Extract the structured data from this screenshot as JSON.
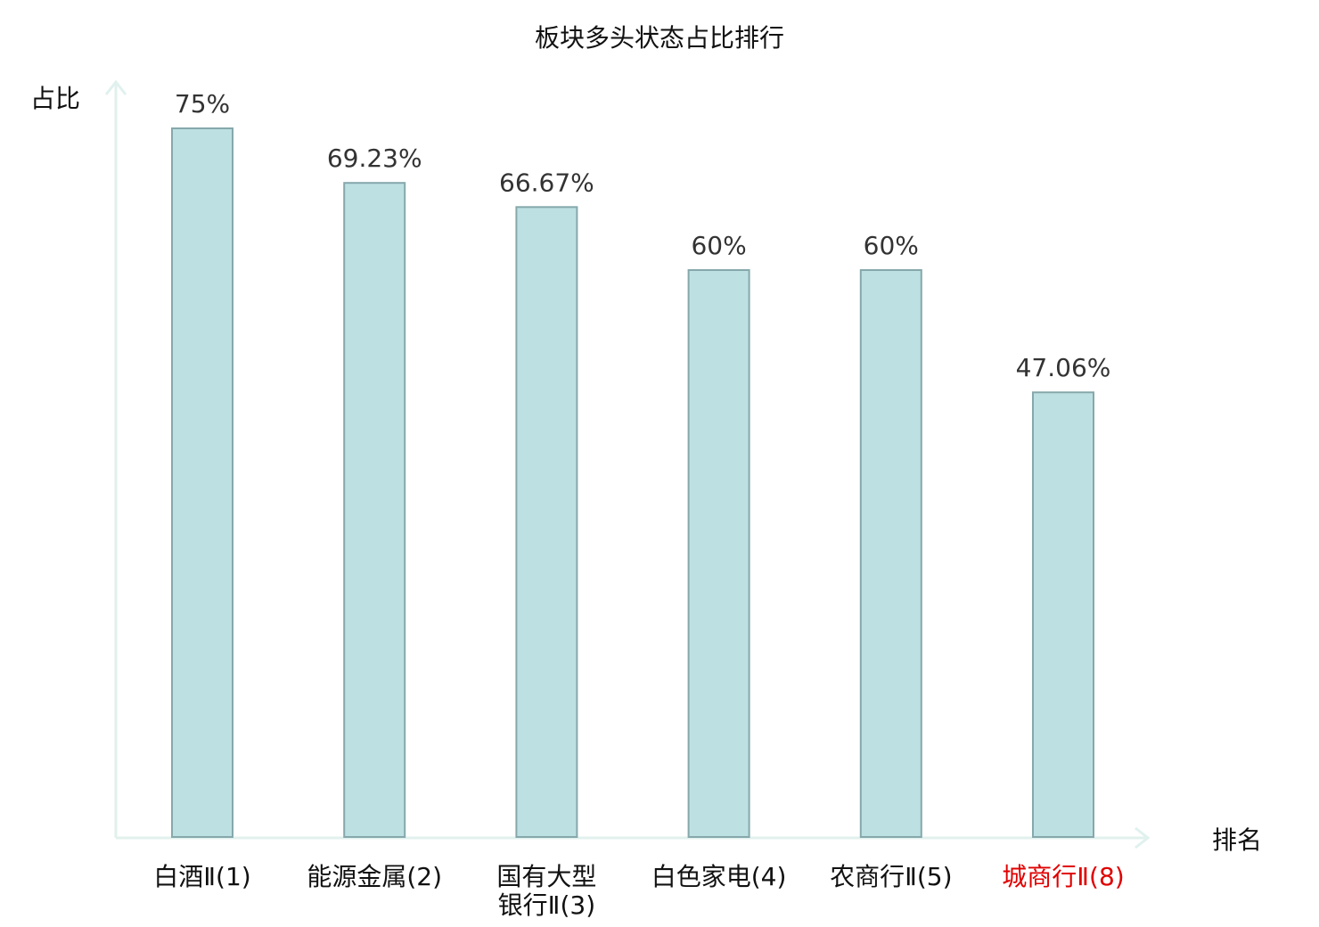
{
  "chart_data": {
    "type": "bar",
    "title": "板块多头状态占比排行",
    "xlabel": "排名",
    "ylabel": "占比",
    "categories": [
      [
        "白酒Ⅱ(1)"
      ],
      [
        "能源金属(2)"
      ],
      [
        "国有大型",
        "银行Ⅱ(3)"
      ],
      [
        "白色家电(4)"
      ],
      [
        "农商行Ⅱ(5)"
      ],
      [
        "城商行Ⅱ(8)"
      ]
    ],
    "values": [
      75,
      69.23,
      66.67,
      60,
      60,
      47.06
    ],
    "value_labels": [
      "75%",
      "69.23%",
      "66.67%",
      "60%",
      "60%",
      "47.06%"
    ],
    "highlight_index": 5,
    "ylim": [
      0,
      75
    ],
    "colors": {
      "bar_fill": "#bde0e3",
      "bar_stroke": "#86a8ab",
      "axis": "#e0f1ee",
      "label": "#111111",
      "highlight": "#e00000"
    }
  }
}
